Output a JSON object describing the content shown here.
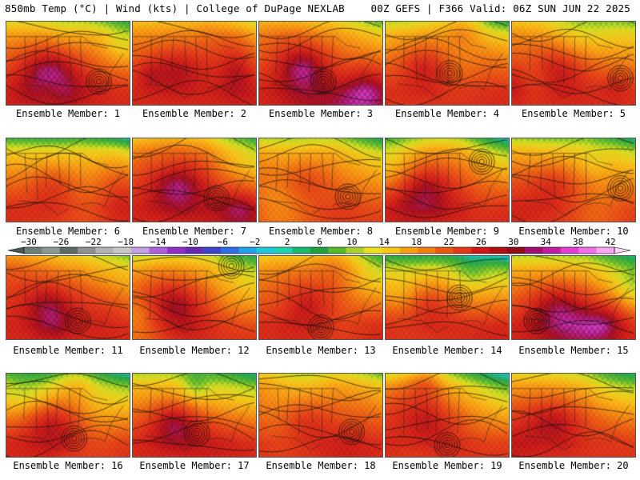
{
  "header": {
    "left": "850mb Temp (°C) | Wind (kts) | College of DuPage NEXLAB",
    "right": "00Z GEFS | F366 Valid: 06Z SUN JUN 22 2025"
  },
  "members": [
    {
      "label": "Ensemble Member: 1",
      "seed": 11,
      "cool": 0.55,
      "low": [
        0.75,
        0.72
      ]
    },
    {
      "label": "Ensemble Member: 2",
      "seed": 23,
      "cool": 0.45,
      "low": null
    },
    {
      "label": "Ensemble Member: 3",
      "seed": 37,
      "cool": 0.5,
      "low": [
        0.52,
        0.72
      ]
    },
    {
      "label": "Ensemble Member: 4",
      "seed": 41,
      "cool": 0.6,
      "low": [
        0.52,
        0.62
      ]
    },
    {
      "label": "Ensemble Member: 5",
      "seed": 53,
      "cool": 0.45,
      "low": [
        0.88,
        0.68
      ]
    },
    {
      "label": "Ensemble Member: 6",
      "seed": 61,
      "cool": 0.75,
      "low": null
    },
    {
      "label": "Ensemble Member: 7",
      "seed": 72,
      "cool": 0.55,
      "low": [
        0.68,
        0.72
      ]
    },
    {
      "label": "Ensemble Member: 8",
      "seed": 83,
      "cool": 0.6,
      "low": [
        0.72,
        0.7
      ]
    },
    {
      "label": "Ensemble Member: 9",
      "seed": 97,
      "cool": 0.7,
      "low": [
        0.78,
        0.28
      ]
    },
    {
      "label": "Ensemble Member: 10",
      "seed": 104,
      "cool": 0.65,
      "low": [
        0.88,
        0.6
      ]
    },
    {
      "label": "Ensemble Member: 11",
      "seed": 115,
      "cool": 0.45,
      "low": [
        0.58,
        0.78
      ]
    },
    {
      "label": "Ensemble Member: 12",
      "seed": 126,
      "cool": 0.55,
      "low": [
        0.8,
        0.12
      ]
    },
    {
      "label": "Ensemble Member: 13",
      "seed": 139,
      "cool": 0.5,
      "low": [
        0.5,
        0.86
      ]
    },
    {
      "label": "Ensemble Member: 14",
      "seed": 148,
      "cool": 0.75,
      "low": [
        0.6,
        0.5
      ]
    },
    {
      "label": "Ensemble Member: 15",
      "seed": 157,
      "cool": 0.6,
      "low": [
        0.2,
        0.78
      ]
    },
    {
      "label": "Ensemble Member: 16",
      "seed": 166,
      "cool": 0.65,
      "low": [
        0.55,
        0.78
      ]
    },
    {
      "label": "Ensemble Member: 17",
      "seed": 178,
      "cool": 0.6,
      "low": [
        0.52,
        0.72
      ]
    },
    {
      "label": "Ensemble Member: 18",
      "seed": 189,
      "cool": 0.55,
      "low": [
        0.75,
        0.7
      ]
    },
    {
      "label": "Ensemble Member: 19",
      "seed": 194,
      "cool": 0.7,
      "low": [
        0.5,
        0.86
      ]
    },
    {
      "label": "Ensemble Member: 20",
      "seed": 205,
      "cool": 0.55,
      "low": null
    }
  ],
  "colorbar": {
    "labels": [
      "-30",
      "-26",
      "-22",
      "-18",
      "-14",
      "-10",
      "-6",
      "-2",
      "2",
      "6",
      "10",
      "14",
      "18",
      "22",
      "26",
      "30",
      "34",
      "38",
      "42"
    ],
    "colors": [
      "#6a7f75",
      "#8a9a93",
      "#5f6a64",
      "#8f8f8f",
      "#b3b3b3",
      "#c8c8c8",
      "#c3a0e0",
      "#b060d8",
      "#9030c8",
      "#6828b0",
      "#3d46c8",
      "#2f6ee0",
      "#25a0e8",
      "#20c8d8",
      "#1ed4b0",
      "#1cb870",
      "#22a040",
      "#58b830",
      "#a8d030",
      "#e8e020",
      "#f8c818",
      "#f8a010",
      "#f08010",
      "#e85810",
      "#e03818",
      "#d01818",
      "#b01010",
      "#900c18",
      "#a01070",
      "#c020a0",
      "#e040d0",
      "#f070e8",
      "#f8a8f0"
    ]
  }
}
